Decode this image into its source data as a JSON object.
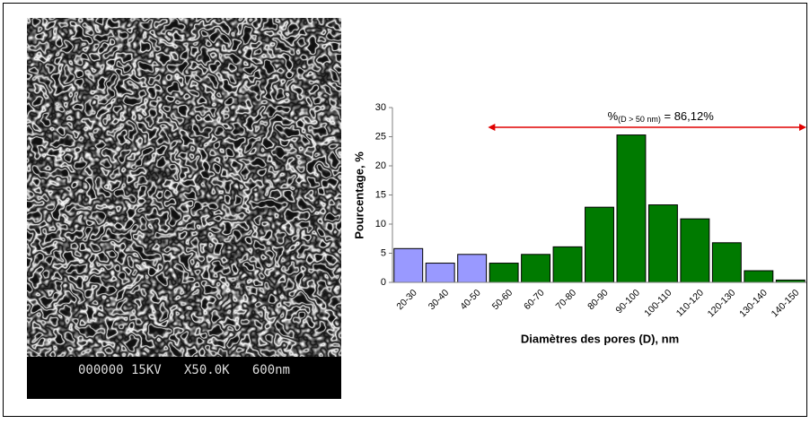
{
  "chart_data": {
    "type": "bar",
    "ylabel": "Pourcentage, %",
    "xlabel": "Diamètres des pores (D), nm",
    "categories": [
      "20-30",
      "30-40",
      "40-50",
      "50-60",
      "60-70",
      "70-80",
      "80-90",
      "90-100",
      "100-110",
      "110-120",
      "120-130",
      "130-140",
      "140-150"
    ],
    "values": [
      5.8,
      3.3,
      4.8,
      3.3,
      4.8,
      6.1,
      12.9,
      25.3,
      13.3,
      10.9,
      6.8,
      2.0,
      0.4
    ],
    "colors": [
      "#9999ff",
      "#9999ff",
      "#9999ff",
      "#007a00",
      "#007a00",
      "#007a00",
      "#007a00",
      "#007a00",
      "#007a00",
      "#007a00",
      "#007a00",
      "#007a00",
      "#007a00"
    ],
    "ylim": [
      0,
      30
    ],
    "yticks": [
      0,
      5,
      10,
      15,
      20,
      25,
      30
    ],
    "grid": false,
    "annotation": {
      "prefix": "%",
      "subscript": "(D > 50 nm)",
      "suffix": " = 86,12%",
      "arrow_color": "#e00000"
    }
  },
  "image": {
    "caption": "000000 15KV   X50.0K   600nm"
  }
}
